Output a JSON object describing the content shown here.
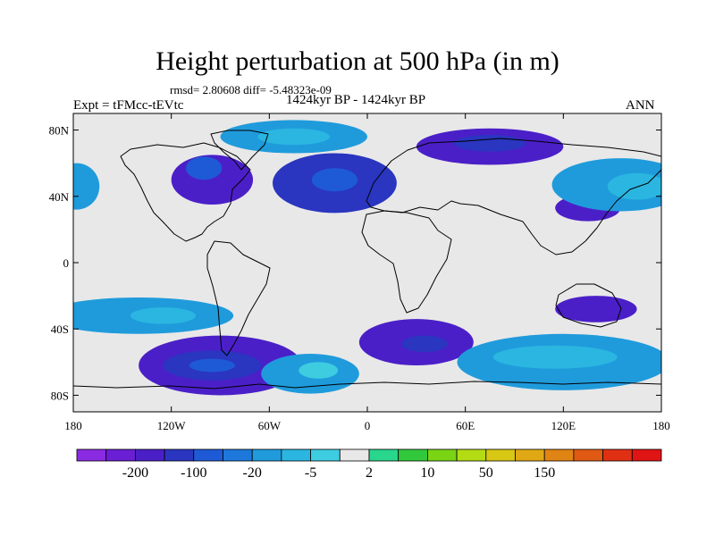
{
  "header": {
    "title": "Height perturbation at 500 hPa (in m)",
    "stats": "rmsd= 2.80608  diff= -5.48323e-09",
    "experiment": "Expt = tFMcc-tEVtc",
    "period": "1424kyr BP - 1424kyr BP",
    "season": "ANN"
  },
  "map": {
    "background": "#e8e8e8",
    "lon_range": [
      -180,
      180
    ],
    "lat_range": [
      -90,
      90
    ],
    "x_ticks": [
      {
        "lon": -180,
        "label": "180"
      },
      {
        "lon": -120,
        "label": "120W"
      },
      {
        "lon": -60,
        "label": "60W"
      },
      {
        "lon": 0,
        "label": "0"
      },
      {
        "lon": 60,
        "label": "60E"
      },
      {
        "lon": 120,
        "label": "120E"
      },
      {
        "lon": 180,
        "label": "180"
      }
    ],
    "y_ticks": [
      {
        "lat": 80,
        "label": "80N"
      },
      {
        "lat": 40,
        "label": "40N"
      },
      {
        "lat": 0,
        "label": "0"
      },
      {
        "lat": -40,
        "label": "40S"
      },
      {
        "lat": -80,
        "label": "80S"
      }
    ],
    "anomalies": [
      {
        "lon": -95,
        "lat": 50,
        "rlon": 25,
        "rlat": 15,
        "level": 2
      },
      {
        "lon": -100,
        "lat": 57,
        "rlon": 11,
        "rlat": 7,
        "level": 4
      },
      {
        "lon": -20,
        "lat": 48,
        "rlon": 38,
        "rlat": 18,
        "level": 3
      },
      {
        "lon": -20,
        "lat": 50,
        "rlon": 14,
        "rlat": 7,
        "level": 4
      },
      {
        "lon": 75,
        "lat": 70,
        "rlon": 45,
        "rlat": 11,
        "level": 2
      },
      {
        "lon": 75,
        "lat": 72,
        "rlon": 22,
        "rlat": 5,
        "level": 3
      },
      {
        "lon": 135,
        "lat": 33,
        "rlon": 20,
        "rlat": 8,
        "level": 2
      },
      {
        "lon": -45,
        "lat": 76,
        "rlon": 45,
        "rlat": 10,
        "level": 6
      },
      {
        "lon": -45,
        "lat": 76,
        "rlon": 22,
        "rlat": 5,
        "level": 7
      },
      {
        "lon": 155,
        "lat": 47,
        "rlon": 42,
        "rlat": 16,
        "level": 6
      },
      {
        "lon": 165,
        "lat": 46,
        "rlon": 18,
        "rlat": 8,
        "level": 7
      },
      {
        "lon": -178,
        "lat": 46,
        "rlon": 14,
        "rlat": 14,
        "level": 6
      },
      {
        "lon": -140,
        "lat": -32,
        "rlon": 58,
        "rlat": 11,
        "level": 6
      },
      {
        "lon": -125,
        "lat": -32,
        "rlon": 20,
        "rlat": 5,
        "level": 7
      },
      {
        "lon": -90,
        "lat": -62,
        "rlon": 50,
        "rlat": 18,
        "level": 2
      },
      {
        "lon": -95,
        "lat": -62,
        "rlon": 30,
        "rlat": 9,
        "level": 3
      },
      {
        "lon": -95,
        "lat": -62,
        "rlon": 14,
        "rlat": 4,
        "level": 4
      },
      {
        "lon": -35,
        "lat": -67,
        "rlon": 30,
        "rlat": 12,
        "level": 6
      },
      {
        "lon": -30,
        "lat": -65,
        "rlon": 12,
        "rlat": 5,
        "level": 8
      },
      {
        "lon": 30,
        "lat": -48,
        "rlon": 35,
        "rlat": 14,
        "level": 2
      },
      {
        "lon": 35,
        "lat": -49,
        "rlon": 14,
        "rlat": 5,
        "level": 3
      },
      {
        "lon": 120,
        "lat": -60,
        "rlon": 65,
        "rlat": 17,
        "level": 6
      },
      {
        "lon": 115,
        "lat": -57,
        "rlon": 38,
        "rlat": 7,
        "level": 7
      },
      {
        "lon": 140,
        "lat": -28,
        "rlon": 25,
        "rlat": 8,
        "level": 2
      }
    ]
  },
  "colorbar": {
    "colors": [
      "#8a2be2",
      "#6a1fd4",
      "#4b1fc8",
      "#2a35c0",
      "#1e5ad6",
      "#1e78dc",
      "#1f9bdc",
      "#2ab6e0",
      "#3ecce0",
      "#e8e8e8",
      "#28d68c",
      "#32c83c",
      "#7ad414",
      "#b4dc14",
      "#d8c814",
      "#e0a814",
      "#e08414",
      "#e05a14",
      "#e03014",
      "#e01414"
    ],
    "labels": [
      {
        "index": 1,
        "text": "-200"
      },
      {
        "index": 3,
        "text": "-100"
      },
      {
        "index": 5,
        "text": "-20"
      },
      {
        "index": 7,
        "text": "-5"
      },
      {
        "index": 9,
        "text": "2"
      },
      {
        "index": 11,
        "text": "10"
      },
      {
        "index": 13,
        "text": "50"
      },
      {
        "index": 15,
        "text": "150"
      }
    ]
  }
}
